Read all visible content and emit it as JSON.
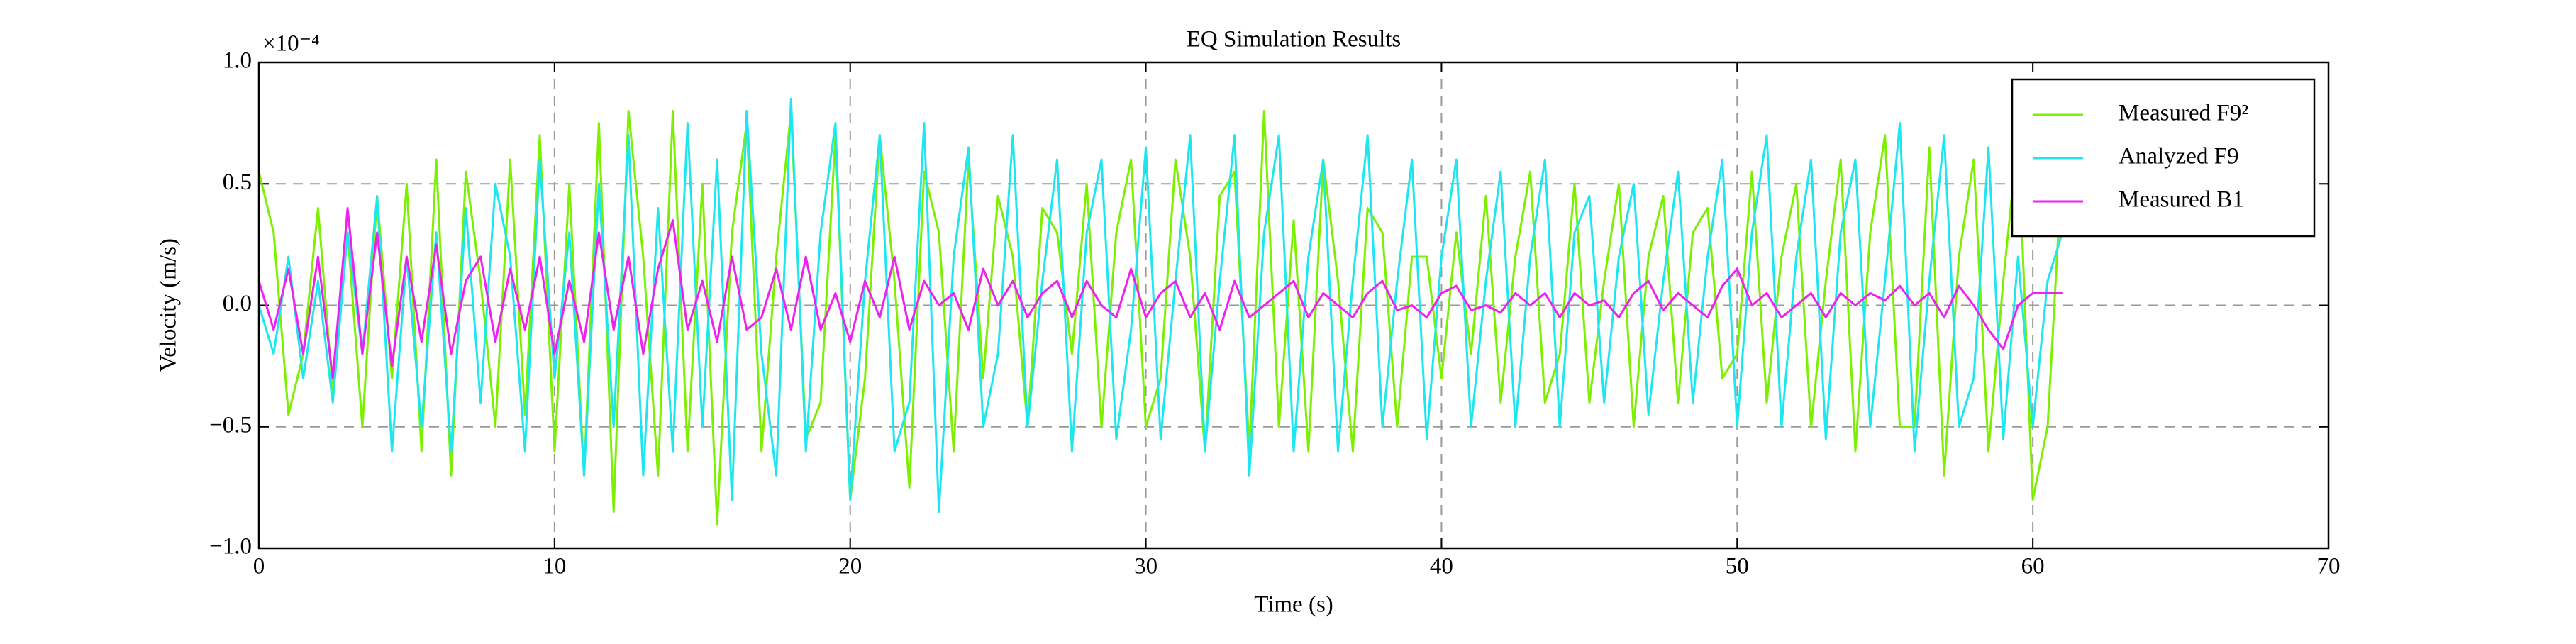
{
  "chart_data": {
    "type": "line",
    "title": "EQ Simulation Results",
    "xlabel": "Time (s)",
    "ylabel": "Velocity (m/s)",
    "y_scale_label": "×10⁻⁴",
    "xlim": [
      0,
      70
    ],
    "xticks": [
      0,
      10,
      20,
      30,
      40,
      50,
      60,
      70
    ],
    "ylim": [
      -1,
      1
    ],
    "yticks": [
      {
        "value": -1,
        "label": "−1.0"
      },
      {
        "value": -0.5,
        "label": "−0.5"
      },
      {
        "value": 0,
        "label": "0.0"
      },
      0.5,
      {
        "value": 1,
        "label": "1.0"
      }
    ],
    "grid": true,
    "legend": "upper right",
    "x": [
      0,
      0.5,
      1,
      1.5,
      2,
      2.5,
      3,
      3.5,
      4,
      4.5,
      5,
      5.5,
      6,
      6.5,
      7,
      7.5,
      8,
      8.5,
      9,
      9.5,
      10,
      10.5,
      11,
      11.5,
      12,
      12.5,
      13,
      13.5,
      14,
      14.5,
      15,
      15.5,
      16,
      16.5,
      17,
      17.5,
      18,
      18.5,
      19,
      19.5,
      20,
      20.5,
      21,
      21.5,
      22,
      22.5,
      23,
      23.5,
      24,
      24.5,
      25,
      25.5,
      26,
      26.5,
      27,
      27.5,
      28,
      28.5,
      29,
      29.5,
      30,
      30.5,
      31,
      31.5,
      32,
      32.5,
      33,
      33.5,
      34,
      34.5,
      35,
      35.5,
      36,
      36.5,
      37,
      37.5,
      38,
      38.5,
      39,
      39.5,
      40,
      40.5,
      41,
      41.5,
      42,
      42.5,
      43,
      43.5,
      44,
      44.5,
      45,
      45.5,
      46,
      46.5,
      47,
      47.5,
      48,
      48.5,
      49,
      49.5,
      50,
      50.5,
      51,
      51.5,
      52,
      52.5,
      53,
      53.5,
      54,
      54.5,
      55,
      55.5,
      56,
      56.5,
      57,
      57.5,
      58,
      58.5,
      59,
      59.5,
      60,
      60.5,
      61
    ],
    "series": [
      {
        "name": "Measured F9²",
        "color": "#7cf000",
        "values": [
          0.55,
          0.3,
          -0.45,
          -0.2,
          0.4,
          -0.35,
          0.3,
          -0.5,
          0.45,
          -0.3,
          0.5,
          -0.6,
          0.6,
          -0.7,
          0.55,
          0.1,
          -0.5,
          0.6,
          -0.45,
          0.7,
          -0.6,
          0.5,
          -0.7,
          0.75,
          -0.85,
          0.8,
          0.2,
          -0.7,
          0.8,
          -0.6,
          0.5,
          -0.9,
          0.3,
          0.75,
          -0.6,
          0.2,
          0.8,
          -0.55,
          -0.4,
          0.7,
          -0.8,
          -0.3,
          0.7,
          0.1,
          -0.75,
          0.55,
          0.3,
          -0.6,
          0.6,
          -0.3,
          0.45,
          0.2,
          -0.5,
          0.4,
          0.3,
          -0.2,
          0.5,
          -0.5,
          0.3,
          0.6,
          -0.5,
          -0.3,
          0.6,
          0.2,
          -0.6,
          0.45,
          0.55,
          -0.6,
          0.8,
          -0.5,
          0.35,
          -0.6,
          0.6,
          0.1,
          -0.6,
          0.4,
          0.3,
          -0.5,
          0.2,
          0.2,
          -0.3,
          0.3,
          -0.2,
          0.45,
          -0.4,
          0.2,
          0.55,
          -0.4,
          -0.2,
          0.5,
          -0.4,
          0.1,
          0.5,
          -0.5,
          0.2,
          0.45,
          -0.4,
          0.3,
          0.4,
          -0.3,
          -0.2,
          0.55,
          -0.4,
          0.2,
          0.5,
          -0.5,
          0.1,
          0.6,
          -0.6,
          0.3,
          0.7,
          -0.5,
          -0.5,
          0.65,
          -0.7,
          0.2,
          0.6,
          -0.6,
          0.1,
          0.7,
          -0.8,
          -0.5,
          0.6
        ]
      },
      {
        "name": "Analyzed F9",
        "color": "#1ee6f0",
        "values": [
          0.0,
          -0.2,
          0.2,
          -0.3,
          0.1,
          -0.4,
          0.3,
          -0.2,
          0.45,
          -0.6,
          0.2,
          -0.5,
          0.3,
          -0.6,
          0.4,
          -0.4,
          0.5,
          0.2,
          -0.6,
          0.6,
          -0.3,
          0.3,
          -0.7,
          0.5,
          -0.5,
          0.7,
          -0.7,
          0.4,
          -0.6,
          0.75,
          -0.5,
          0.6,
          -0.8,
          0.8,
          -0.2,
          -0.7,
          0.85,
          -0.6,
          0.3,
          0.75,
          -0.8,
          0.1,
          0.7,
          -0.6,
          -0.4,
          0.75,
          -0.85,
          0.2,
          0.65,
          -0.5,
          -0.2,
          0.7,
          -0.5,
          0.1,
          0.6,
          -0.6,
          0.3,
          0.6,
          -0.55,
          -0.1,
          0.65,
          -0.55,
          0.1,
          0.7,
          -0.6,
          0.1,
          0.7,
          -0.7,
          0.3,
          0.7,
          -0.6,
          0.2,
          0.6,
          -0.6,
          0.1,
          0.7,
          -0.5,
          0.1,
          0.6,
          -0.55,
          0.2,
          0.6,
          -0.5,
          0.1,
          0.55,
          -0.5,
          0.2,
          0.6,
          -0.5,
          0.3,
          0.45,
          -0.4,
          0.2,
          0.5,
          -0.45,
          0.1,
          0.55,
          -0.4,
          0.2,
          0.6,
          -0.5,
          0.3,
          0.7,
          -0.5,
          0.2,
          0.6,
          -0.55,
          0.3,
          0.6,
          -0.5,
          0.1,
          0.75,
          -0.6,
          0.1,
          0.7,
          -0.5,
          -0.3,
          0.65,
          -0.55,
          0.2,
          -0.5,
          0.1,
          0.3
        ]
      },
      {
        "name": "Measured B1",
        "color": "#ee22ee",
        "values": [
          0.1,
          -0.1,
          0.15,
          -0.2,
          0.2,
          -0.3,
          0.4,
          -0.2,
          0.3,
          -0.25,
          0.2,
          -0.15,
          0.25,
          -0.2,
          0.1,
          0.2,
          -0.15,
          0.15,
          -0.1,
          0.2,
          -0.2,
          0.1,
          -0.15,
          0.3,
          -0.1,
          0.2,
          -0.2,
          0.15,
          0.35,
          -0.1,
          0.1,
          -0.15,
          0.2,
          -0.1,
          -0.05,
          0.15,
          -0.1,
          0.2,
          -0.1,
          0.05,
          -0.15,
          0.1,
          -0.05,
          0.2,
          -0.1,
          0.1,
          0.0,
          0.05,
          -0.1,
          0.15,
          0.0,
          0.1,
          -0.05,
          0.05,
          0.1,
          -0.05,
          0.1,
          0.0,
          -0.05,
          0.15,
          -0.05,
          0.05,
          0.1,
          -0.05,
          0.05,
          -0.1,
          0.1,
          -0.05,
          0.0,
          0.05,
          0.1,
          -0.05,
          0.05,
          0.0,
          -0.05,
          0.05,
          0.1,
          -0.02,
          0.0,
          -0.05,
          0.05,
          0.08,
          -0.02,
          0.0,
          -0.03,
          0.05,
          0.0,
          0.05,
          -0.05,
          0.05,
          0.0,
          0.02,
          -0.05,
          0.05,
          0.1,
          -0.02,
          0.05,
          0.0,
          -0.05,
          0.08,
          0.15,
          0.0,
          0.05,
          -0.05,
          0.0,
          0.05,
          -0.05,
          0.05,
          0.0,
          0.05,
          0.02,
          0.08,
          0.0,
          0.05,
          -0.05,
          0.08,
          0.0,
          -0.1,
          -0.18,
          0.0,
          0.05,
          0.05,
          0.05
        ]
      }
    ]
  }
}
